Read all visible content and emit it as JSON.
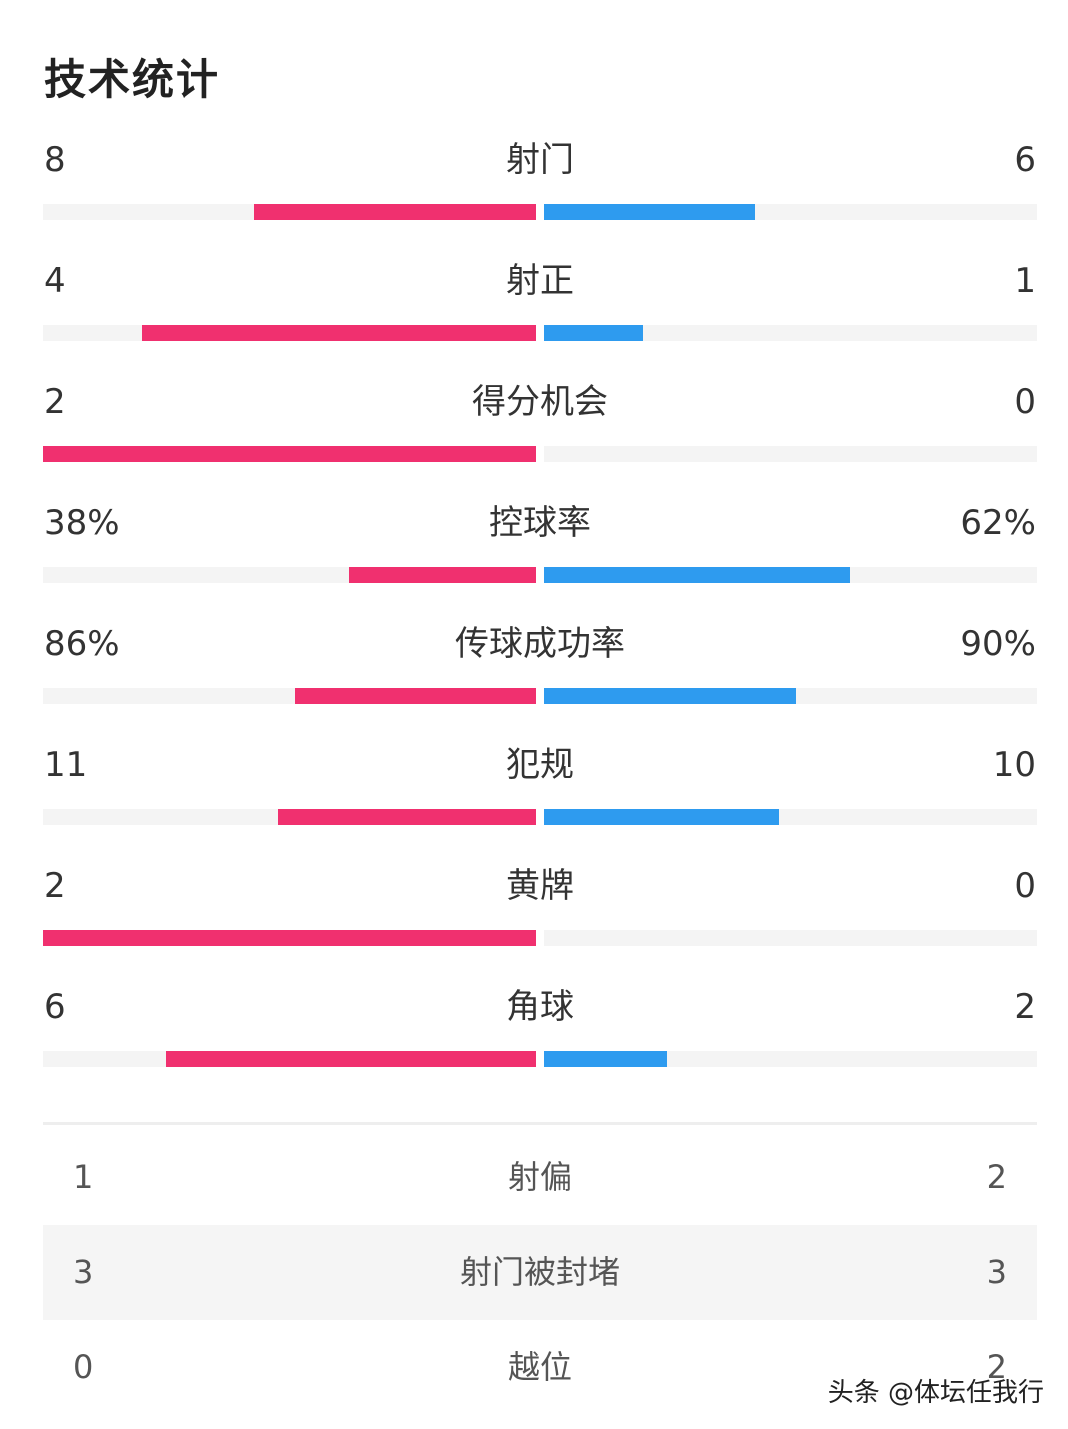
{
  "title": "技术统计",
  "colors": {
    "home": "#f0306f",
    "away": "#2e9bef",
    "track": "#f4f4f4"
  },
  "stats": [
    {
      "label": "射门",
      "home": "8",
      "away": "6",
      "home_value": 8,
      "away_value": 6
    },
    {
      "label": "射正",
      "home": "4",
      "away": "1",
      "home_value": 4,
      "away_value": 1
    },
    {
      "label": "得分机会",
      "home": "2",
      "away": "0",
      "home_value": 2,
      "away_value": 0
    },
    {
      "label": "控球率",
      "home": "38%",
      "away": "62%",
      "home_value": 38,
      "away_value": 62
    },
    {
      "label": "传球成功率",
      "home": "86%",
      "away": "90%",
      "home_value": 86,
      "away_value": 90
    },
    {
      "label": "犯规",
      "home": "11",
      "away": "10",
      "home_value": 11,
      "away_value": 10
    },
    {
      "label": "黄牌",
      "home": "2",
      "away": "0",
      "home_value": 2,
      "away_value": 0
    },
    {
      "label": "角球",
      "home": "6",
      "away": "2",
      "home_value": 6,
      "away_value": 2
    }
  ],
  "table": [
    {
      "label": "射偏",
      "home": "1",
      "away": "2"
    },
    {
      "label": "射门被封堵",
      "home": "3",
      "away": "3"
    },
    {
      "label": "越位",
      "home": "0",
      "away": "2"
    }
  ],
  "watermark": "头条 @体坛任我行"
}
